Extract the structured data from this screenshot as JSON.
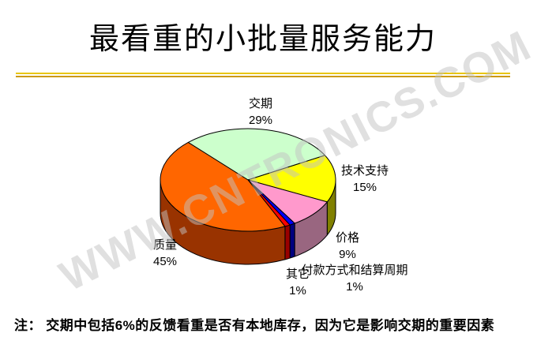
{
  "page": {
    "background": "#FFFFFF"
  },
  "title": "最看重的小批量服务能力",
  "divider": {
    "top_color": "#E8C500",
    "bottom_color": "#CC9900"
  },
  "watermark": "WWW.CNTRONICS.COM",
  "note": "注： 交期中包括6%的反馈看重是否有本地库存，因为它是影响交期的重要因素",
  "chart_data": {
    "type": "pie",
    "is_3d": true,
    "title": "最看重的小批量服务能力",
    "start_angle_deg": -43,
    "direction": "clockwise",
    "labels_show": "category-name-and-percent",
    "legend": "none",
    "slices": [
      {
        "key": "delivery",
        "label": "交期",
        "value": 29,
        "pct_label": "29%",
        "color": "#CCFFCC",
        "side_color": "#669966"
      },
      {
        "key": "tech-support",
        "label": "技术支持",
        "value": 15,
        "pct_label": "15%",
        "color": "#FFFF00",
        "side_color": "#808000"
      },
      {
        "key": "price",
        "label": "价格",
        "value": 9,
        "pct_label": "9%",
        "color": "#FF99CC",
        "side_color": "#996680"
      },
      {
        "key": "payment-terms",
        "label": "付款方式和结算周期",
        "value": 1,
        "pct_label": "1%",
        "color": "#0000FF",
        "side_color": "#000080"
      },
      {
        "key": "others",
        "label": "其它",
        "value": 1,
        "pct_label": "1%",
        "color": "#FF0000",
        "side_color": "#990000"
      },
      {
        "key": "quality",
        "label": "质量",
        "value": 45,
        "pct_label": "45%",
        "color": "#FF6600",
        "side_color": "#993300"
      }
    ]
  }
}
